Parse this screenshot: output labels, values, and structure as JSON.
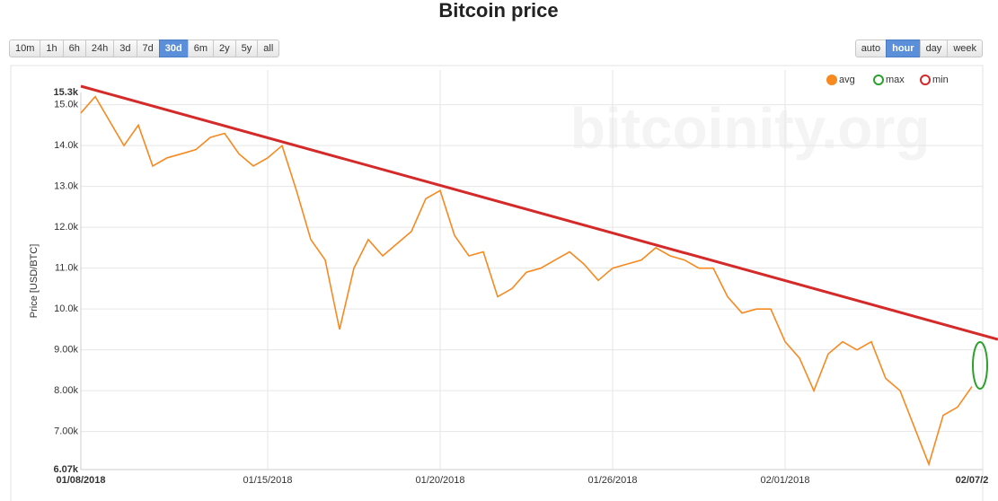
{
  "chart_data": {
    "type": "line",
    "title": "Bitcoin price",
    "range_buttons": [
      "10m",
      "1h",
      "6h",
      "24h",
      "3d",
      "7d",
      "30d",
      "6m",
      "2y",
      "5y",
      "all"
    ],
    "active_range": "30d",
    "resolution_buttons": [
      "auto",
      "hour",
      "day",
      "week"
    ],
    "active_resolution": "hour",
    "watermark": "bitcoinity.org",
    "y_label": "Price [USD/BTC]",
    "legend": [
      {
        "name": "avg",
        "color": "#f7891f"
      },
      {
        "name": "max",
        "color": "#2ca02c"
      },
      {
        "name": "min",
        "color": "#d62728"
      }
    ],
    "categories": [
      "01/08/2018",
      null,
      null,
      null,
      null,
      null,
      null,
      null,
      null,
      null,
      null,
      null,
      null,
      "01/15/2018",
      null,
      null,
      null,
      null,
      null,
      null,
      null,
      null,
      null,
      null,
      null,
      "01/20/2018",
      null,
      null,
      null,
      null,
      null,
      null,
      null,
      null,
      null,
      null,
      null,
      "01/26/2018",
      null,
      null,
      null,
      null,
      null,
      null,
      null,
      null,
      null,
      null,
      null,
      "02/01/2018",
      null,
      null,
      null,
      null,
      null,
      null,
      null,
      null,
      null,
      null,
      null,
      null,
      "02/07/2"
    ],
    "series": [
      {
        "name": "avg",
        "color": "#f7891f",
        "values": [
          14800,
          15200,
          14600,
          14000,
          14500,
          13500,
          13700,
          13800,
          13900,
          14200,
          14300,
          13800,
          13500,
          13700,
          14000,
          12900,
          11700,
          11200,
          9500,
          11000,
          11700,
          11300,
          11600,
          11900,
          12700,
          12900,
          11800,
          11300,
          11400,
          10300,
          10500,
          10900,
          11000,
          11200,
          11400,
          11100,
          10700,
          11000,
          11100,
          11200,
          11500,
          11300,
          11200,
          11000,
          11000,
          10300,
          9900,
          10000,
          10000,
          9200,
          8800,
          8000,
          8900,
          9200,
          9000,
          9200,
          8300,
          8000,
          7100,
          6200,
          7400,
          7600,
          8100
        ]
      }
    ],
    "ylim": [
      6070,
      15300
    ],
    "yticks": [
      {
        "value": 6070,
        "label": "6.07k"
      },
      {
        "value": 7000,
        "label": "7.00k"
      },
      {
        "value": 8000,
        "label": "8.00k"
      },
      {
        "value": 9000,
        "label": "9.00k"
      },
      {
        "value": 10000,
        "label": "10.0k"
      },
      {
        "value": 11000,
        "label": "11.0k"
      },
      {
        "value": 12000,
        "label": "12.0k"
      },
      {
        "value": 13000,
        "label": "13.0k"
      },
      {
        "value": 14000,
        "label": "14.0k"
      },
      {
        "value": 15000,
        "label": "15.0k"
      },
      {
        "value": 15300,
        "label": "15.3k"
      }
    ],
    "grid": true
  }
}
